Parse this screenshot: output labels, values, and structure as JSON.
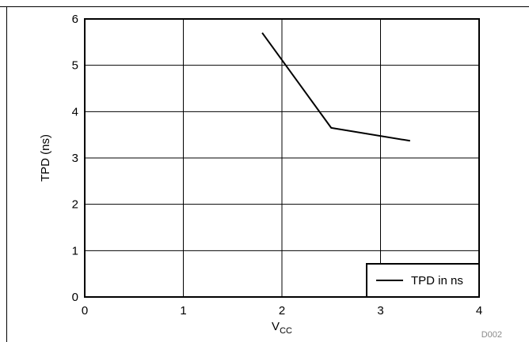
{
  "chart_data": {
    "type": "line",
    "title": "",
    "xlabel": "V",
    "xlabel_sub": "CC",
    "ylabel": "TPD (ns)",
    "xlim": [
      0,
      4
    ],
    "ylim": [
      0,
      6
    ],
    "xticks": [
      0,
      1,
      2,
      3,
      4
    ],
    "yticks": [
      0,
      1,
      2,
      3,
      4,
      5,
      6
    ],
    "xtick_labels": [
      "0",
      "1",
      "2",
      "3",
      "4"
    ],
    "ytick_labels": [
      "0",
      "1",
      "2",
      "3",
      "4",
      "5",
      "6"
    ],
    "grid": true,
    "legend": "bottom-right",
    "series": [
      {
        "name": "TPD in ns",
        "color": "#000000",
        "x": [
          1.8,
          2.5,
          3.3
        ],
        "y": [
          5.7,
          3.65,
          3.37
        ]
      }
    ]
  },
  "figure_code": "D002"
}
